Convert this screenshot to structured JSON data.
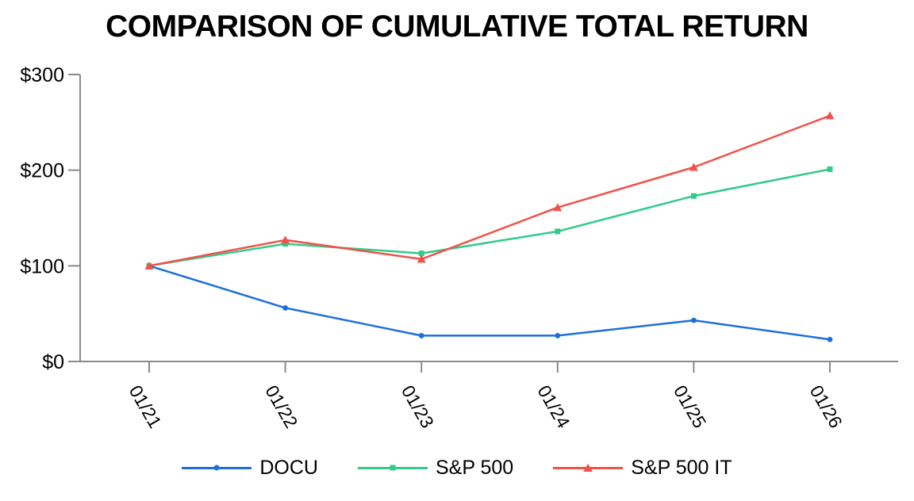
{
  "title": "COMPARISON OF CUMULATIVE TOTAL RETURN",
  "colors": {
    "axis": "#8a8a8a",
    "text": "#000000",
    "background": "#ffffff",
    "docu_blue": "#1c6fdb",
    "sp500_green": "#31cb89",
    "sp500it_red": "#f15149"
  },
  "chart_data": {
    "type": "line",
    "title": "COMPARISON OF CUMULATIVE TOTAL RETURN",
    "categories": [
      "01/21",
      "01/22",
      "01/23",
      "01/24",
      "01/25",
      "01/26"
    ],
    "series": [
      {
        "name": "DOCU",
        "color": "#1c6fdb",
        "marker": "circle",
        "values": [
          100,
          56,
          27,
          27,
          43,
          23
        ]
      },
      {
        "name": "S&P 500",
        "color": "#31cb89",
        "marker": "square",
        "values": [
          100,
          123,
          113,
          136,
          173,
          201
        ]
      },
      {
        "name": "S&P 500 IT",
        "color": "#f15149",
        "marker": "triangle",
        "values": [
          100,
          127,
          107,
          161,
          203,
          257
        ]
      }
    ],
    "y_ticks": [
      {
        "label": "$0",
        "value": 0
      },
      {
        "label": "$100",
        "value": 100
      },
      {
        "label": "$200",
        "value": 200
      },
      {
        "label": "$300",
        "value": 300
      }
    ],
    "xlabel": "",
    "ylabel": "",
    "ylim": [
      0,
      300
    ],
    "grid": false,
    "legend_position": "bottom",
    "x_label_rotation_deg": 60
  }
}
